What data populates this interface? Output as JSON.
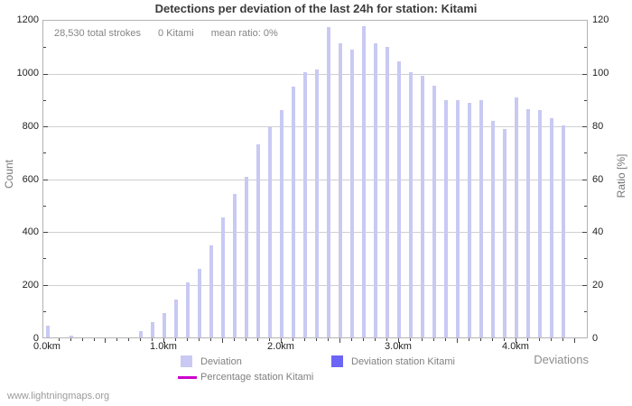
{
  "title": "Detections per deviation of the last 24h for station: Kitami",
  "stats": {
    "total_strokes": "28,530 total strokes",
    "station_strokes": "0 Kitami",
    "mean_ratio": "mean ratio: 0%"
  },
  "watermark": "www.lightningmaps.org",
  "colors": {
    "deviation_bar": "#c9c9f4",
    "station_bar": "#6b66f5",
    "percentage_line": "#cc00cc",
    "gridline": "#cfcfcf",
    "plot_border": "#b3b3b3"
  },
  "axes": {
    "left_label": "Count",
    "right_label": "Ratio [%]",
    "x_label": "Deviations",
    "left_ticks": [
      0,
      200,
      400,
      600,
      800,
      1000,
      1200
    ],
    "right_ticks": [
      0,
      20,
      40,
      60,
      80,
      100,
      120
    ],
    "x_tick_labels": [
      "0.0km",
      "1.0km",
      "2.0km",
      "3.0km",
      "4.0km"
    ]
  },
  "legend": [
    {
      "label": "Deviation",
      "color": "#c9c9f4",
      "type": "square"
    },
    {
      "label": "Deviation station Kitami",
      "color": "#6b66f5",
      "type": "square"
    },
    {
      "label": "Percentage station Kitami",
      "color": "#cc00cc",
      "type": "line"
    }
  ],
  "chart_data": {
    "type": "bar",
    "title": "Detections per deviation of the last 24h for station: Kitami",
    "xlabel": "Deviations",
    "ylabel": "Count",
    "ylabel_right": "Ratio [%]",
    "ylim": [
      0,
      1200
    ],
    "ylim_right": [
      0,
      120
    ],
    "xlim_km": [
      0,
      4.55
    ],
    "grid": true,
    "legend_position": "bottom",
    "x_km": [
      0.0,
      0.1,
      0.2,
      0.3,
      0.4,
      0.5,
      0.6,
      0.7,
      0.8,
      0.9,
      1.0,
      1.1,
      1.2,
      1.3,
      1.4,
      1.5,
      1.6,
      1.7,
      1.8,
      1.9,
      2.0,
      2.1,
      2.2,
      2.3,
      2.4,
      2.5,
      2.6,
      2.7,
      2.8,
      2.9,
      3.0,
      3.1,
      3.2,
      3.3,
      3.4,
      3.5,
      3.6,
      3.7,
      3.8,
      3.9,
      4.0,
      4.1,
      4.2,
      4.3,
      4.4
    ],
    "series": [
      {
        "name": "Deviation",
        "axis": "left",
        "style": "bar",
        "values": [
          45,
          0,
          6,
          0,
          0,
          0,
          0,
          0,
          25,
          57,
          91,
          144,
          208,
          259,
          350,
          455,
          545,
          610,
          730,
          795,
          860,
          950,
          1005,
          1015,
          1175,
          1115,
          1090,
          1180,
          1115,
          1100,
          1045,
          1005,
          990,
          955,
          900,
          900,
          890,
          900,
          820,
          790,
          910,
          865,
          860,
          830,
          805
        ]
      },
      {
        "name": "Deviation station Kitami",
        "axis": "left",
        "style": "bar",
        "values": [
          0,
          0,
          0,
          0,
          0,
          0,
          0,
          0,
          0,
          0,
          0,
          0,
          0,
          0,
          0,
          0,
          0,
          0,
          0,
          0,
          0,
          0,
          0,
          0,
          0,
          0,
          0,
          0,
          0,
          0,
          0,
          0,
          0,
          0,
          0,
          0,
          0,
          0,
          0,
          0,
          0,
          0,
          0,
          0,
          0
        ]
      },
      {
        "name": "Percentage station Kitami",
        "axis": "right",
        "style": "line",
        "values": [
          0,
          0,
          0,
          0,
          0,
          0,
          0,
          0,
          0,
          0,
          0,
          0,
          0,
          0,
          0,
          0,
          0,
          0,
          0,
          0,
          0,
          0,
          0,
          0,
          0,
          0,
          0,
          0,
          0,
          0,
          0,
          0,
          0,
          0,
          0,
          0,
          0,
          0,
          0,
          0,
          0,
          0,
          0,
          0,
          0
        ]
      }
    ]
  }
}
